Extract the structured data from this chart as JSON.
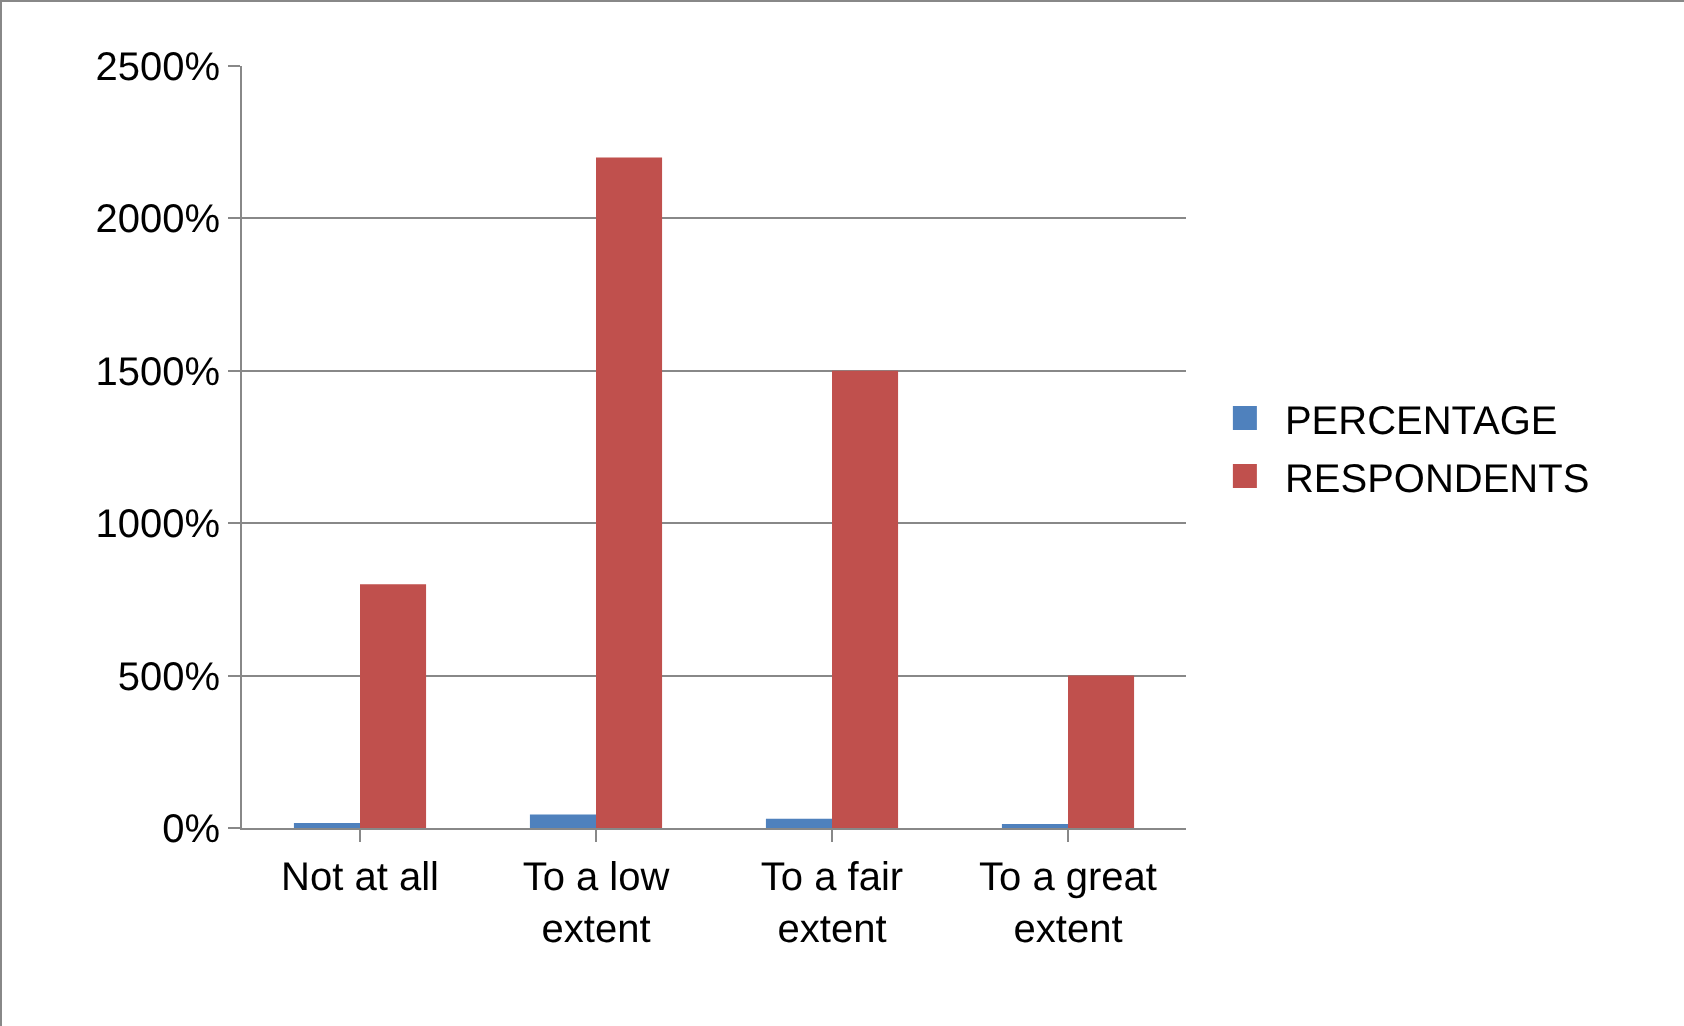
{
  "chart_data": {
    "type": "bar",
    "categories": [
      "Not at all",
      "To a low extent",
      "To a fair extent",
      "To a great extent"
    ],
    "series": [
      {
        "name": "PERCENTAGE",
        "color": "#4f81bd",
        "values": [
          16,
          44,
          30,
          10
        ]
      },
      {
        "name": "RESPONDENTS",
        "color": "#c0504d",
        "values": [
          800,
          2200,
          1500,
          500
        ]
      }
    ],
    "ylim": [
      0,
      2500
    ],
    "yticks": [
      {
        "value": 0,
        "label": "0%"
      },
      {
        "value": 500,
        "label": "500%"
      },
      {
        "value": 1000,
        "label": "1000%"
      },
      {
        "value": 1500,
        "label": "1500%"
      },
      {
        "value": 2000,
        "label": "2000%"
      },
      {
        "value": 2500,
        "label": "2500%"
      }
    ],
    "grid": "y",
    "legend": "right"
  }
}
